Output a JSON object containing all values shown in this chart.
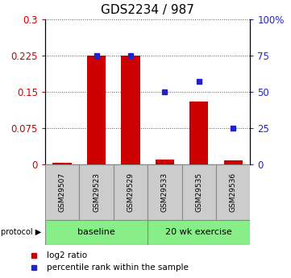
{
  "title": "GDS2234 / 987",
  "samples": [
    "GSM29507",
    "GSM29523",
    "GSM29529",
    "GSM29533",
    "GSM29535",
    "GSM29536"
  ],
  "log2_ratio": [
    0.002,
    0.225,
    0.225,
    0.01,
    0.13,
    0.008
  ],
  "percentile_rank": [
    null,
    75,
    75,
    50,
    57,
    25
  ],
  "left_ylim": [
    0,
    0.3
  ],
  "left_yticks": [
    0,
    0.075,
    0.15,
    0.225,
    0.3
  ],
  "left_yticklabels": [
    "0",
    "0.075",
    "0.15",
    "0.225",
    "0.3"
  ],
  "right_ylim": [
    0,
    100
  ],
  "right_yticks": [
    0,
    25,
    50,
    75,
    100
  ],
  "right_yticklabels": [
    "0",
    "25",
    "50",
    "75",
    "100%"
  ],
  "bar_color": "#cc0000",
  "scatter_color": "#2222cc",
  "left_tick_color": "#cc0000",
  "right_tick_color": "#2222cc",
  "protocol_labels": [
    "baseline",
    "20 wk exercise"
  ],
  "protocol_color_light": "#88ee88",
  "sample_box_color": "#cccccc",
  "legend_items": [
    "log2 ratio",
    "percentile rank within the sample"
  ],
  "bar_width": 0.55,
  "dotted_line_color": "#555555",
  "background_color": "#ffffff",
  "title_fontsize": 11,
  "tick_fontsize": 8.5,
  "legend_fontsize": 7.5
}
